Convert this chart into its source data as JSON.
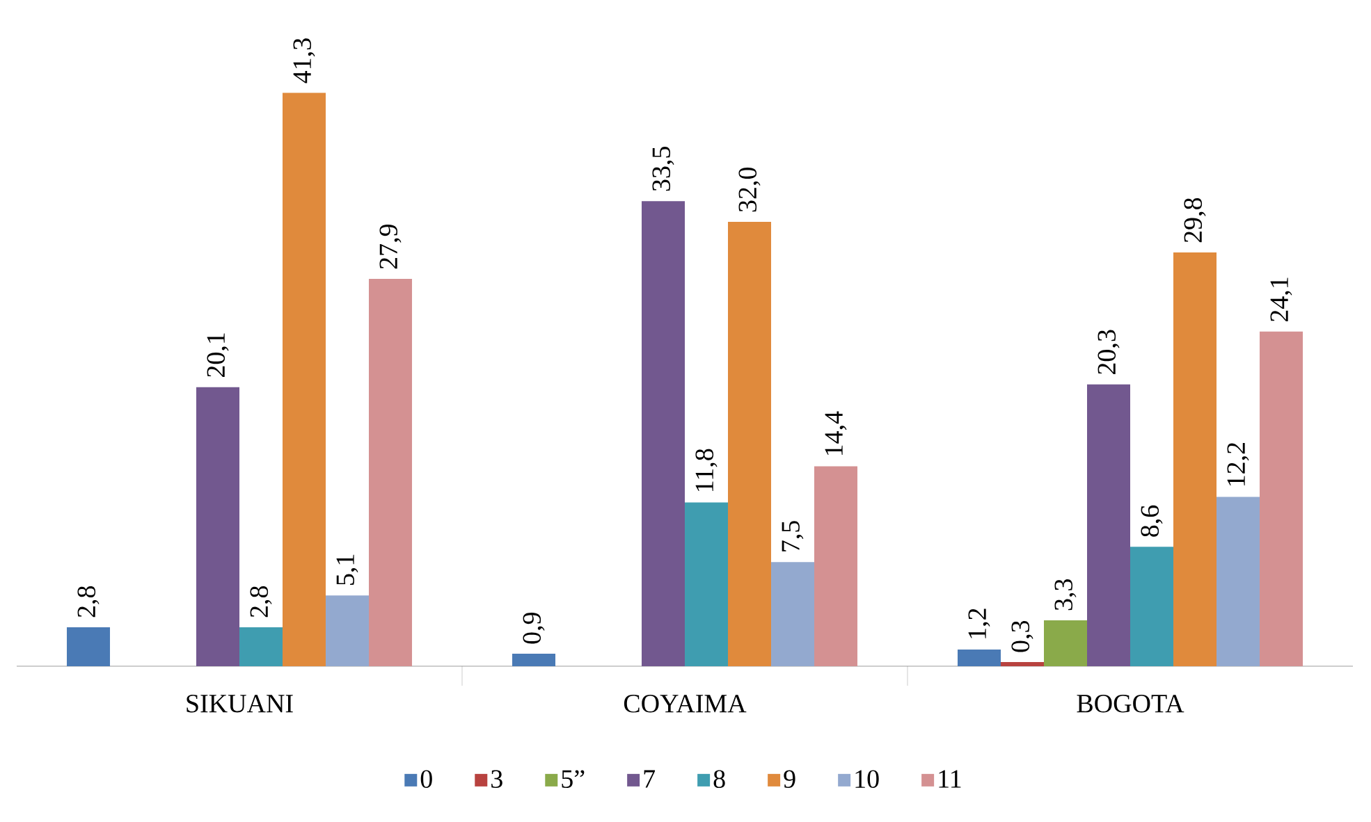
{
  "chart_data": {
    "type": "bar",
    "categories": [
      "SIKUANI",
      "COYAIMA",
      "BOGOTA"
    ],
    "series": [
      {
        "name": "0",
        "color": "#4a7ab5",
        "values": [
          2.8,
          0.9,
          1.2
        ],
        "value_labels": [
          "2,8",
          "0,9",
          "1,2"
        ]
      },
      {
        "name": "3",
        "color": "#b8423f",
        "values": [
          null,
          null,
          0.3
        ],
        "value_labels": [
          null,
          null,
          "0,3"
        ]
      },
      {
        "name": "5”",
        "color": "#8aaa4a",
        "values": [
          null,
          null,
          3.3
        ],
        "value_labels": [
          null,
          null,
          "3,3"
        ]
      },
      {
        "name": "7",
        "color": "#72588f",
        "values": [
          20.1,
          33.5,
          20.3
        ],
        "value_labels": [
          "20,1",
          "33,5",
          "20,3"
        ]
      },
      {
        "name": "8",
        "color": "#3f9db0",
        "values": [
          2.8,
          11.8,
          8.6
        ],
        "value_labels": [
          "2,8",
          "11,8",
          "8,6"
        ]
      },
      {
        "name": "9",
        "color": "#e08a3c",
        "values": [
          41.3,
          32.0,
          29.8
        ],
        "value_labels": [
          "41,3",
          "32,0",
          "29,8"
        ]
      },
      {
        "name": "10",
        "color": "#93a9cf",
        "values": [
          5.1,
          7.5,
          12.2
        ],
        "value_labels": [
          "5,1",
          "7,5",
          "12,2"
        ]
      },
      {
        "name": "11",
        "color": "#d49192",
        "values": [
          27.9,
          14.4,
          24.1
        ],
        "value_labels": [
          "27,9",
          "14,4",
          "24,1"
        ]
      }
    ],
    "legend": "bottom"
  }
}
